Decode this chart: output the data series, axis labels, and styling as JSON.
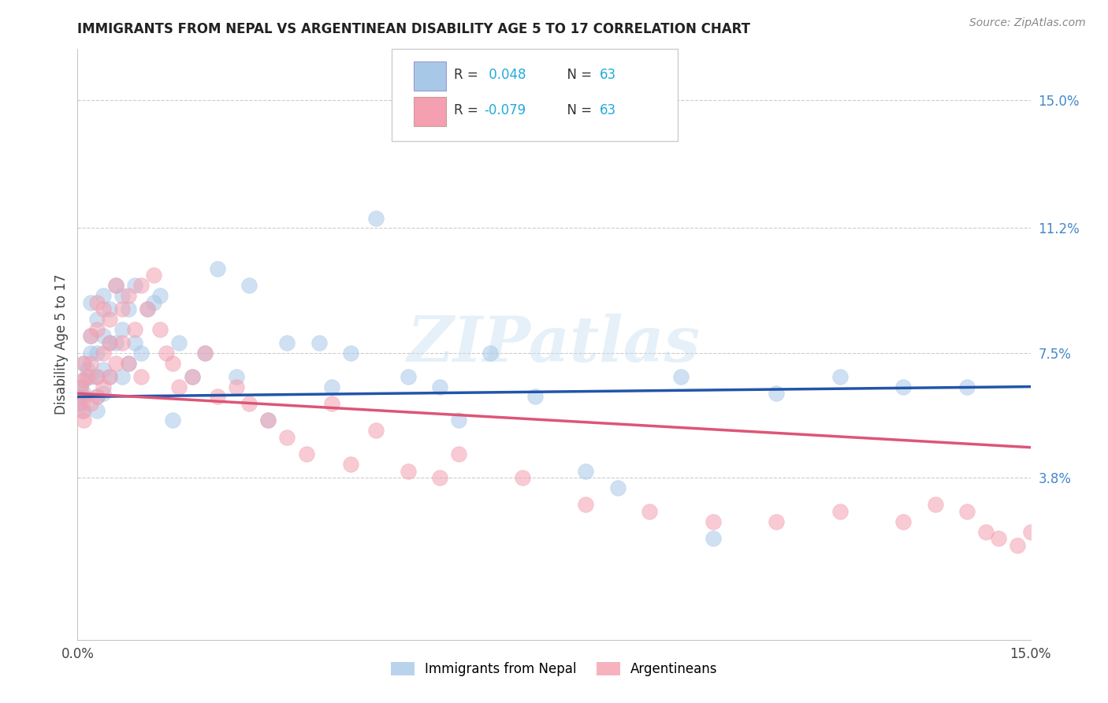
{
  "title": "IMMIGRANTS FROM NEPAL VS ARGENTINEAN DISABILITY AGE 5 TO 17 CORRELATION CHART",
  "source": "Source: ZipAtlas.com",
  "ylabel": "Disability Age 5 to 17",
  "ytick_labels": [
    "15.0%",
    "11.2%",
    "7.5%",
    "3.8%"
  ],
  "ytick_values": [
    0.15,
    0.112,
    0.075,
    0.038
  ],
  "xlim": [
    0.0,
    0.15
  ],
  "ylim": [
    -0.01,
    0.165
  ],
  "legend_r1_prefix": "R = ",
  "legend_r1_val": " 0.048",
  "legend_r1_n": "N = 63",
  "legend_r2_prefix": "R = ",
  "legend_r2_val": "-0.079",
  "legend_r2_n": "N = 63",
  "legend_label1": "Immigrants from Nepal",
  "legend_label2": "Argentineans",
  "color_blue": "#a8c8e8",
  "color_pink": "#f4a0b0",
  "line_color_blue": "#2255aa",
  "line_color_pink": "#dd5577",
  "r1": 0.048,
  "r2": -0.079,
  "nepal_x": [
    0.0002,
    0.0005,
    0.0008,
    0.001,
    0.001,
    0.001,
    0.001,
    0.0015,
    0.002,
    0.002,
    0.002,
    0.002,
    0.003,
    0.003,
    0.003,
    0.003,
    0.003,
    0.004,
    0.004,
    0.004,
    0.004,
    0.005,
    0.005,
    0.005,
    0.006,
    0.006,
    0.007,
    0.007,
    0.007,
    0.008,
    0.008,
    0.009,
    0.009,
    0.01,
    0.011,
    0.012,
    0.013,
    0.015,
    0.016,
    0.018,
    0.02,
    0.022,
    0.025,
    0.027,
    0.03,
    0.033,
    0.038,
    0.04,
    0.043,
    0.047,
    0.052,
    0.057,
    0.06,
    0.065,
    0.072,
    0.08,
    0.085,
    0.095,
    0.1,
    0.11,
    0.12,
    0.13,
    0.14
  ],
  "nepal_y": [
    0.062,
    0.065,
    0.06,
    0.072,
    0.067,
    0.063,
    0.058,
    0.07,
    0.075,
    0.068,
    0.08,
    0.09,
    0.085,
    0.075,
    0.068,
    0.062,
    0.058,
    0.092,
    0.08,
    0.07,
    0.063,
    0.088,
    0.078,
    0.068,
    0.095,
    0.078,
    0.092,
    0.082,
    0.068,
    0.088,
    0.072,
    0.095,
    0.078,
    0.075,
    0.088,
    0.09,
    0.092,
    0.055,
    0.078,
    0.068,
    0.075,
    0.1,
    0.068,
    0.095,
    0.055,
    0.078,
    0.078,
    0.065,
    0.075,
    0.115,
    0.068,
    0.065,
    0.055,
    0.075,
    0.062,
    0.04,
    0.035,
    0.068,
    0.02,
    0.063,
    0.068,
    0.065,
    0.065
  ],
  "arg_x": [
    0.0002,
    0.0005,
    0.0007,
    0.001,
    0.001,
    0.001,
    0.001,
    0.0015,
    0.002,
    0.002,
    0.002,
    0.003,
    0.003,
    0.003,
    0.003,
    0.004,
    0.004,
    0.004,
    0.005,
    0.005,
    0.005,
    0.006,
    0.006,
    0.007,
    0.007,
    0.008,
    0.008,
    0.009,
    0.01,
    0.01,
    0.011,
    0.012,
    0.013,
    0.014,
    0.015,
    0.016,
    0.018,
    0.02,
    0.022,
    0.025,
    0.027,
    0.03,
    0.033,
    0.036,
    0.04,
    0.043,
    0.047,
    0.052,
    0.057,
    0.06,
    0.07,
    0.08,
    0.09,
    0.1,
    0.11,
    0.12,
    0.13,
    0.135,
    0.14,
    0.143,
    0.145,
    0.148,
    0.15
  ],
  "arg_y": [
    0.06,
    0.065,
    0.058,
    0.072,
    0.067,
    0.062,
    0.055,
    0.068,
    0.08,
    0.072,
    0.06,
    0.09,
    0.082,
    0.068,
    0.062,
    0.088,
    0.075,
    0.065,
    0.085,
    0.078,
    0.068,
    0.095,
    0.072,
    0.088,
    0.078,
    0.092,
    0.072,
    0.082,
    0.095,
    0.068,
    0.088,
    0.098,
    0.082,
    0.075,
    0.072,
    0.065,
    0.068,
    0.075,
    0.062,
    0.065,
    0.06,
    0.055,
    0.05,
    0.045,
    0.06,
    0.042,
    0.052,
    0.04,
    0.038,
    0.045,
    0.038,
    0.03,
    0.028,
    0.025,
    0.025,
    0.028,
    0.025,
    0.03,
    0.028,
    0.022,
    0.02,
    0.018,
    0.022
  ]
}
